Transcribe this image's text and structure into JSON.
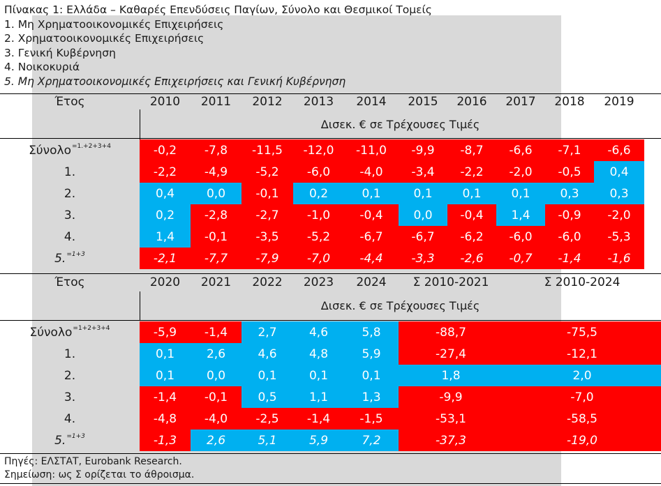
{
  "header": {
    "title": "Πίνακας 1: Ελλάδα – Καθαρές Επενδύσεις Παγίων, Σύνολο και Θεσμικοί Τομείς",
    "items": [
      "1. Μη Χρηματοοικονομικές Επιχειρήσεις",
      "2. Χρηματοοικονομικές Επιχειρήσεις",
      "3. Γενική Κυβέρνηση",
      "4. Νοικοκυριά",
      "5. Μη Χρηματοοικονομικές Επιχειρήσεις και Γενική Κυβέρνηση"
    ]
  },
  "table1": {
    "year_label": "Έτος",
    "years": [
      "2010",
      "2011",
      "2012",
      "2013",
      "2014",
      "2015",
      "2016",
      "2017",
      "2018",
      "2019"
    ],
    "unit": "Δισεκ. € σε Τρέχουσες Τιμές",
    "rows": [
      {
        "label": "Σύνολο",
        "sup": "=1.+2+3+4",
        "italic": false,
        "values": [
          "-0,2",
          "-7,8",
          "-11,5",
          "-12,0",
          "-11,0",
          "-9,9",
          "-8,7",
          "-6,6",
          "-7,1",
          "-6,6"
        ]
      },
      {
        "label": "1.",
        "sup": "",
        "italic": false,
        "values": [
          "-2,2",
          "-4,9",
          "-5,2",
          "-6,0",
          "-4,0",
          "-3,4",
          "-2,2",
          "-2,0",
          "-0,5",
          "0,4"
        ]
      },
      {
        "label": "2.",
        "sup": "",
        "italic": false,
        "values": [
          "0,4",
          "0,0",
          "-0,1",
          "0,2",
          "0,1",
          "0,1",
          "0,1",
          "0,1",
          "0,3",
          "0,3"
        ]
      },
      {
        "label": "3.",
        "sup": "",
        "italic": false,
        "values": [
          "0,2",
          "-2,8",
          "-2,7",
          "-1,0",
          "-0,4",
          "0,0",
          "-0,4",
          "1,4",
          "-0,9",
          "-2,0"
        ]
      },
      {
        "label": "4.",
        "sup": "",
        "italic": false,
        "values": [
          "1,4",
          "-0,1",
          "-3,5",
          "-5,2",
          "-6,7",
          "-6,7",
          "-6,2",
          "-6,0",
          "-6,0",
          "-5,3"
        ]
      },
      {
        "label": "5.",
        "sup": "=1+3",
        "italic": true,
        "values": [
          "-2,1",
          "-7,7",
          "-7,9",
          "-7,0",
          "-4,4",
          "-3,3",
          "-2,6",
          "-0,7",
          "-1,4",
          "-1,6"
        ]
      }
    ],
    "blue_cells": [
      [
        1,
        9
      ],
      [
        2,
        0
      ],
      [
        2,
        1
      ],
      [
        2,
        3
      ],
      [
        2,
        4
      ],
      [
        2,
        5
      ],
      [
        2,
        6
      ],
      [
        2,
        7
      ],
      [
        2,
        8
      ],
      [
        2,
        9
      ],
      [
        3,
        0
      ],
      [
        3,
        5
      ],
      [
        3,
        7
      ],
      [
        4,
        0
      ]
    ]
  },
  "table2": {
    "year_label": "Έτος",
    "years": [
      "2020",
      "2021",
      "2022",
      "2023",
      "2024"
    ],
    "sum_headers": [
      "Σ 2010-2021",
      "Σ 2010-2024"
    ],
    "unit": "Δισεκ. € σε Τρέχουσες Τιμές",
    "rows": [
      {
        "label": "Σύνολο",
        "sup": "=1+2+3+4",
        "italic": false,
        "values": [
          "-5,9",
          "-1,4",
          "2,7",
          "4,6",
          "5,8"
        ],
        "sums": [
          "-88,7",
          "-75,5"
        ]
      },
      {
        "label": "1.",
        "sup": "",
        "italic": false,
        "values": [
          "0,1",
          "2,6",
          "4,6",
          "4,8",
          "5,9"
        ],
        "sums": [
          "-27,4",
          "-12,1"
        ]
      },
      {
        "label": "2.",
        "sup": "",
        "italic": false,
        "values": [
          "0,1",
          "0,0",
          "0,1",
          "0,1",
          "0,1"
        ],
        "sums": [
          "1,8",
          "2,0"
        ]
      },
      {
        "label": "3.",
        "sup": "",
        "italic": false,
        "values": [
          "-1,4",
          "-0,1",
          "0,5",
          "1,1",
          "1,3"
        ],
        "sums": [
          "-9,9",
          "-7,0"
        ]
      },
      {
        "label": "4.",
        "sup": "",
        "italic": false,
        "values": [
          "-4,8",
          "-4,0",
          "-2,5",
          "-1,4",
          "-1,5"
        ],
        "sums": [
          "-53,1",
          "-58,5"
        ]
      },
      {
        "label": "5.",
        "sup": "=1+3",
        "italic": true,
        "values": [
          "-1,3",
          "2,6",
          "5,1",
          "5,9",
          "7,2"
        ],
        "sums": [
          "-37,3",
          "-19,0"
        ]
      }
    ],
    "blue_cells": [
      [
        0,
        2
      ],
      [
        0,
        3
      ],
      [
        0,
        4
      ],
      [
        1,
        0
      ],
      [
        1,
        1
      ],
      [
        1,
        2
      ],
      [
        1,
        3
      ],
      [
        1,
        4
      ],
      [
        2,
        0
      ],
      [
        2,
        1
      ],
      [
        2,
        2
      ],
      [
        2,
        3
      ],
      [
        2,
        4
      ],
      [
        3,
        2
      ],
      [
        3,
        3
      ],
      [
        3,
        4
      ],
      [
        5,
        1
      ],
      [
        5,
        2
      ],
      [
        5,
        3
      ],
      [
        5,
        4
      ]
    ],
    "blue_sums": [
      [
        2,
        0
      ],
      [
        2,
        1
      ]
    ]
  },
  "footer": {
    "source": "Πηγές: ΕΛΣΤΑΤ, Eurobank Research.",
    "note": "Σημείωση: ως Σ ορίζεται το άθροισμα."
  },
  "colors": {
    "negative": "#ff0000",
    "positive": "#00b0f0",
    "panel": "#d9d9d9"
  }
}
